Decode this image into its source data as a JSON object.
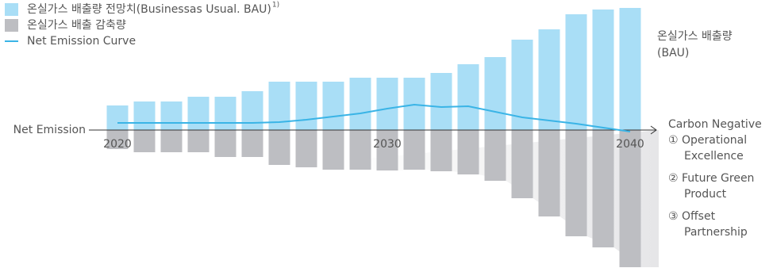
{
  "chart_data": {
    "type": "bar-line",
    "categories": [
      "2020",
      null,
      null,
      null,
      null,
      null,
      null,
      null,
      null,
      null,
      "2030",
      null,
      null,
      null,
      null,
      null,
      null,
      null,
      null,
      "2040"
    ],
    "series": [
      {
        "name": "온실가스 배출량 전망치(Businessas Usual. BAU)",
        "legend_superscript": "1)",
        "color": "#a9def6",
        "kind": "bar",
        "values": [
          31,
          36,
          36,
          42,
          42,
          49,
          61,
          61,
          61,
          66,
          66,
          66,
          72,
          83,
          92,
          114,
          127,
          146,
          152,
          154
        ]
      },
      {
        "name": "온실가스 배출 감축량",
        "color": "#bdbec2",
        "kind": "bar",
        "values": [
          -24,
          -28,
          -28,
          -28,
          -34,
          -34,
          -44,
          -47,
          -50,
          -50,
          -51,
          -50,
          -52,
          -56,
          -64,
          -86,
          -109,
          -134,
          -148,
          -173
        ]
      },
      {
        "name": "Net Emission Curve",
        "color": "#3ab4e6",
        "kind": "line",
        "values": [
          9,
          9,
          9,
          9,
          9,
          9,
          10,
          13,
          17,
          21,
          27,
          32,
          29,
          30,
          23,
          16,
          12,
          8,
          3,
          -2
        ]
      }
    ],
    "ylim": [
      -175,
      160
    ],
    "annotations": {
      "bau_label": [
        "온실가스 배출량",
        "(BAU)"
      ],
      "net_emission_label": "Net Emission",
      "carbon_negative_label": "Carbon Negative",
      "options": [
        [
          "① Operational",
          "Excellence"
        ],
        [
          "② Future Green",
          "Product"
        ],
        [
          "③ Offset",
          "Partnership"
        ]
      ]
    }
  }
}
